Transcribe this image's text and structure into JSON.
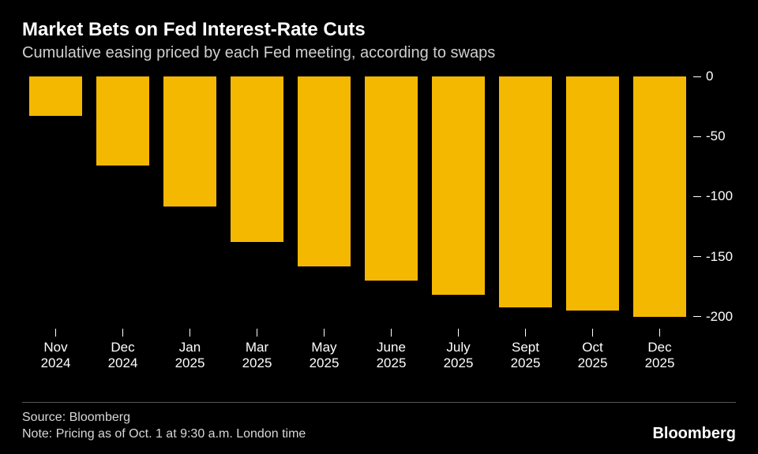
{
  "title": "Market Bets on Fed Interest-Rate Cuts",
  "subtitle": "Cumulative easing priced by each Fed meeting, according to swaps",
  "chart": {
    "type": "bar",
    "orientation": "hanging",
    "background_color": "#000000",
    "bar_color": "#f5b800",
    "bar_width_ratio": 0.78,
    "categories": [
      "Nov\n2024",
      "Dec\n2024",
      "Jan\n2025",
      "Mar\n2025",
      "May\n2025",
      "June\n2025",
      "July\n2025",
      "Sept\n2025",
      "Oct\n2025",
      "Dec\n2025"
    ],
    "values": [
      -33,
      -74,
      -108,
      -138,
      -158,
      -170,
      -182,
      -192,
      -195,
      -200
    ],
    "y_axis": {
      "min": -210,
      "max": 0,
      "ticks": [
        0,
        -50,
        -100,
        -150,
        -200
      ],
      "position": "right",
      "tick_color": "#ffffff",
      "label_fontsize": 17
    },
    "x_axis": {
      "tick_color": "#ffffff",
      "label_fontsize": 17
    },
    "title_fontsize": 24,
    "subtitle_fontsize": 20,
    "text_color": "#ffffff",
    "subtitle_color": "#d0d0d0"
  },
  "footer": {
    "source": "Source: Bloomberg",
    "note": "Note: Pricing as of Oct. 1 at 9:30 a.m. London time",
    "divider_color": "#565656"
  },
  "brand": "Bloomberg"
}
